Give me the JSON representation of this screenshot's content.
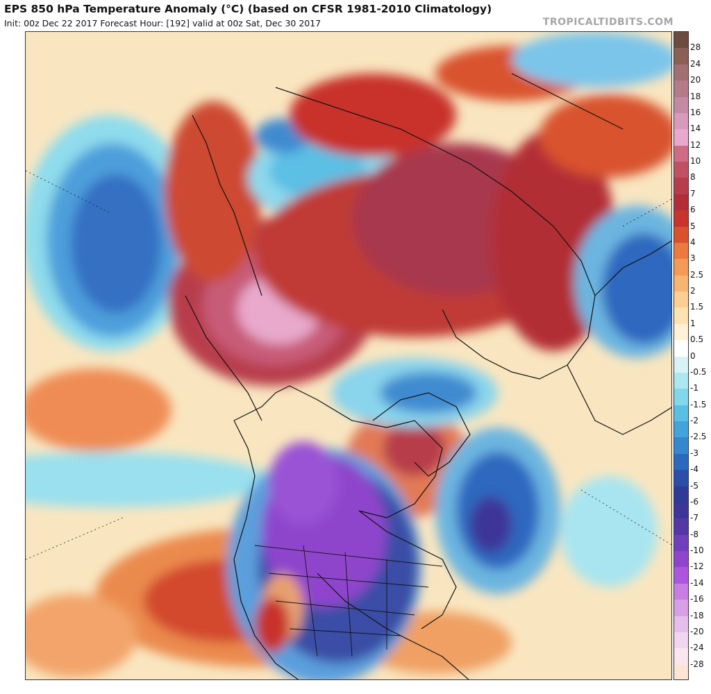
{
  "header": {
    "title": "EPS 850 hPa Temperature Anomaly (°C) (based on CFSR 1981-2010 Climatology)",
    "subtitle": "Init: 00z Dec 22 2017   Forecast Hour: [192]   valid at 00z Sat, Dec 30 2017",
    "brand": "TROPICALTIDBITS.COM"
  },
  "colorbar": {
    "labels": [
      "28",
      "24",
      "20",
      "18",
      "16",
      "14",
      "12",
      "10",
      "8",
      "7",
      "6",
      "5",
      "4",
      "3",
      "2.5",
      "2",
      "1.5",
      "1",
      "0.5",
      "0",
      "-0.5",
      "-1",
      "-1.5",
      "-2",
      "-2.5",
      "-3",
      "-4",
      "-5",
      "-6",
      "-7",
      "-8",
      "-10",
      "-12",
      "-14",
      "-16",
      "-18",
      "-20",
      "-24",
      "-28"
    ],
    "colors": [
      "#6b4c3f",
      "#8a5f55",
      "#a26f73",
      "#b47c8a",
      "#c48aa3",
      "#d79abb",
      "#e8a9cc",
      "#cd6c82",
      "#c05165",
      "#b73d4c",
      "#b22d35",
      "#c8332c",
      "#d9522d",
      "#ea7a3e",
      "#f39a56",
      "#f7b574",
      "#fbcf93",
      "#fde2b3",
      "#fef1d7",
      "#ffffff",
      "#d7f3f6",
      "#aee8ef",
      "#82d8ea",
      "#5bbfe4",
      "#43a4dc",
      "#3587d0",
      "#2d68bf",
      "#2a4ea9",
      "#303b96",
      "#3d3597",
      "#5338a6",
      "#7040ba",
      "#8e45cc",
      "#ab56dc",
      "#c77de2",
      "#d89fe6",
      "#e5bfeb",
      "#f0d6ef",
      "#fae6ee",
      "#fde5d3"
    ]
  },
  "map": {
    "features": [
      "warm-anomaly-alaska-yukon",
      "warm-anomaly-siberia-arctic",
      "cold-anomaly-north-america",
      "cold-anomaly-north-atlantic",
      "cold-anomaly-north-pacific",
      "cold-anomaly-arctic-ocean",
      "cold-anomaly-europe",
      "warm-anomaly-greenland"
    ]
  }
}
